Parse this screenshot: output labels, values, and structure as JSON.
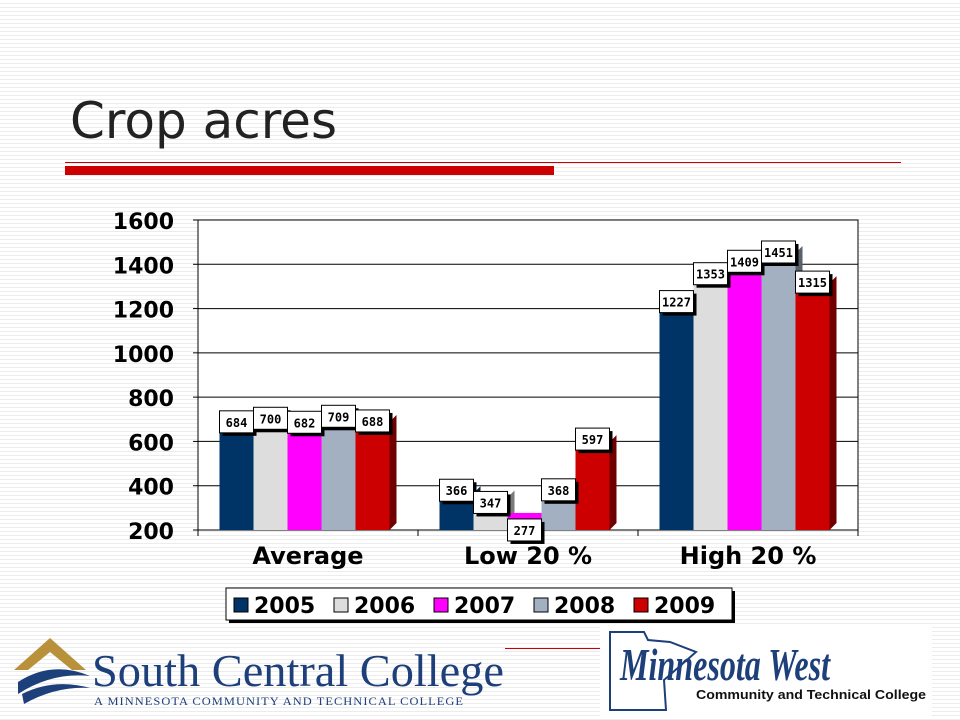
{
  "slide": {
    "title": "Crop acres"
  },
  "chart_data": {
    "type": "bar",
    "categories": [
      "Average",
      "Low 20 %",
      "High 20 %"
    ],
    "series": [
      {
        "name": "2005",
        "color": "#003366",
        "values": [
          684,
          366,
          1227
        ]
      },
      {
        "name": "2006",
        "color": "#dddddd",
        "values": [
          700,
          347,
          1353
        ]
      },
      {
        "name": "2007",
        "color": "#ff00ff",
        "values": [
          682,
          277,
          1409
        ]
      },
      {
        "name": "2008",
        "color": "#a2b0c2",
        "values": [
          709,
          368,
          1451
        ]
      },
      {
        "name": "2009",
        "color": "#cc0000",
        "values": [
          688,
          597,
          1315
        ]
      }
    ],
    "ylim": [
      200,
      1600
    ],
    "yticks": [
      200,
      400,
      600,
      800,
      1000,
      1200,
      1400,
      1600
    ],
    "data_labels": true,
    "gridlines": true,
    "legend_position": "bottom"
  },
  "logos": {
    "south_central": {
      "name": "South Central College",
      "tagline": "A MINNESOTA COMMUNITY AND TECHNICAL COLLEGE"
    },
    "minnesota_west": {
      "name": "Minnesota West",
      "tagline": "Community and Technical College"
    }
  },
  "colors": {
    "accent": "#cc0000",
    "scc_text": "#1d3f7a",
    "scc_gold": "#b8913a"
  }
}
